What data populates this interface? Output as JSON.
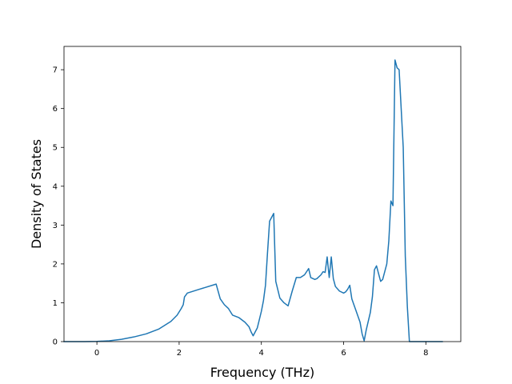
{
  "chart_data": {
    "type": "line",
    "title": "",
    "xlabel": "Frequency (THz)",
    "ylabel": "Density of States",
    "xlim": [
      -0.8,
      8.85
    ],
    "ylim": [
      0,
      7.6
    ],
    "xticks": [
      0,
      2,
      4,
      6,
      8
    ],
    "yticks": [
      0,
      1,
      2,
      3,
      4,
      5,
      6,
      7
    ],
    "grid": false,
    "legend": "none",
    "line_color": "#1f77b4",
    "series": [
      {
        "x": [
          -0.8,
          -0.3,
          0.0,
          0.3,
          0.6,
          0.9,
          1.2,
          1.5,
          1.8,
          1.95,
          2.05,
          2.1,
          2.13,
          2.2,
          2.5,
          2.9,
          3.0,
          3.1,
          3.2,
          3.3,
          3.45,
          3.6,
          3.7,
          3.75,
          3.8,
          3.9,
          4.0,
          4.05,
          4.1,
          4.15,
          4.2,
          4.25,
          4.3,
          4.35,
          4.45,
          4.55,
          4.65,
          4.75,
          4.85,
          4.95,
          5.05,
          5.1,
          5.15,
          5.2,
          5.3,
          5.35,
          5.45,
          5.5,
          5.55,
          5.6,
          5.65,
          5.7,
          5.75,
          5.8,
          5.9,
          6.0,
          6.05,
          6.1,
          6.15,
          6.2,
          6.3,
          6.4,
          6.45,
          6.5,
          6.55,
          6.65,
          6.7,
          6.75,
          6.8,
          6.85,
          6.9,
          6.95,
          7.05,
          7.1,
          7.15,
          7.2,
          7.25,
          7.3,
          7.35,
          7.45,
          7.5,
          7.55,
          7.6,
          7.65,
          8.0,
          8.4
        ],
        "y": [
          0.0,
          0.0,
          0.005,
          0.02,
          0.06,
          0.12,
          0.2,
          0.32,
          0.52,
          0.68,
          0.85,
          0.95,
          1.15,
          1.25,
          1.35,
          1.48,
          1.1,
          0.95,
          0.85,
          0.68,
          0.62,
          0.5,
          0.38,
          0.25,
          0.15,
          0.35,
          0.78,
          1.05,
          1.45,
          2.3,
          3.1,
          3.2,
          3.3,
          1.55,
          1.12,
          1.0,
          0.92,
          1.3,
          1.65,
          1.65,
          1.72,
          1.8,
          1.88,
          1.65,
          1.6,
          1.62,
          1.72,
          1.8,
          1.78,
          2.18,
          1.65,
          2.18,
          1.62,
          1.42,
          1.3,
          1.25,
          1.28,
          1.35,
          1.45,
          1.1,
          0.8,
          0.5,
          0.2,
          0.02,
          0.3,
          0.75,
          1.15,
          1.85,
          1.95,
          1.75,
          1.55,
          1.6,
          2.0,
          2.6,
          3.62,
          3.5,
          7.25,
          7.05,
          7.0,
          5.0,
          2.2,
          0.9,
          0.0,
          0.0,
          0.0,
          0.0
        ]
      }
    ]
  }
}
